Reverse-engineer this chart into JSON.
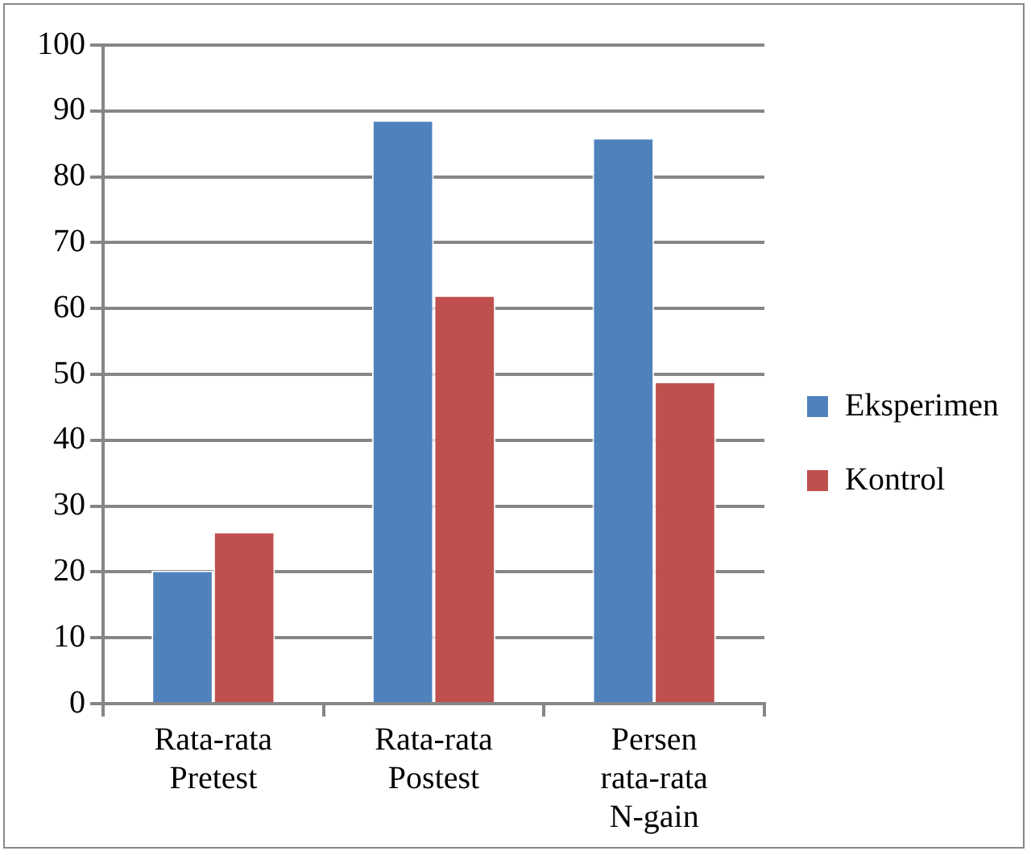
{
  "chart_data": {
    "type": "bar",
    "categories": [
      "Rata-rata\nPretest",
      "Rata-rata\nPostest",
      "Persen\nrata-rata\nN-gain"
    ],
    "series": [
      {
        "name": "Eksperimen",
        "color": "#4f81bd",
        "values": [
          20.2,
          88.6,
          85.9
        ]
      },
      {
        "name": "Kontrol",
        "color": "#c0504d",
        "values": [
          26.1,
          62.0,
          48.9
        ]
      }
    ],
    "ylim": [
      0,
      100
    ],
    "yticks": [
      0,
      10,
      20,
      30,
      40,
      50,
      60,
      70,
      80,
      90,
      100
    ],
    "grid": "y",
    "legend": "right"
  }
}
